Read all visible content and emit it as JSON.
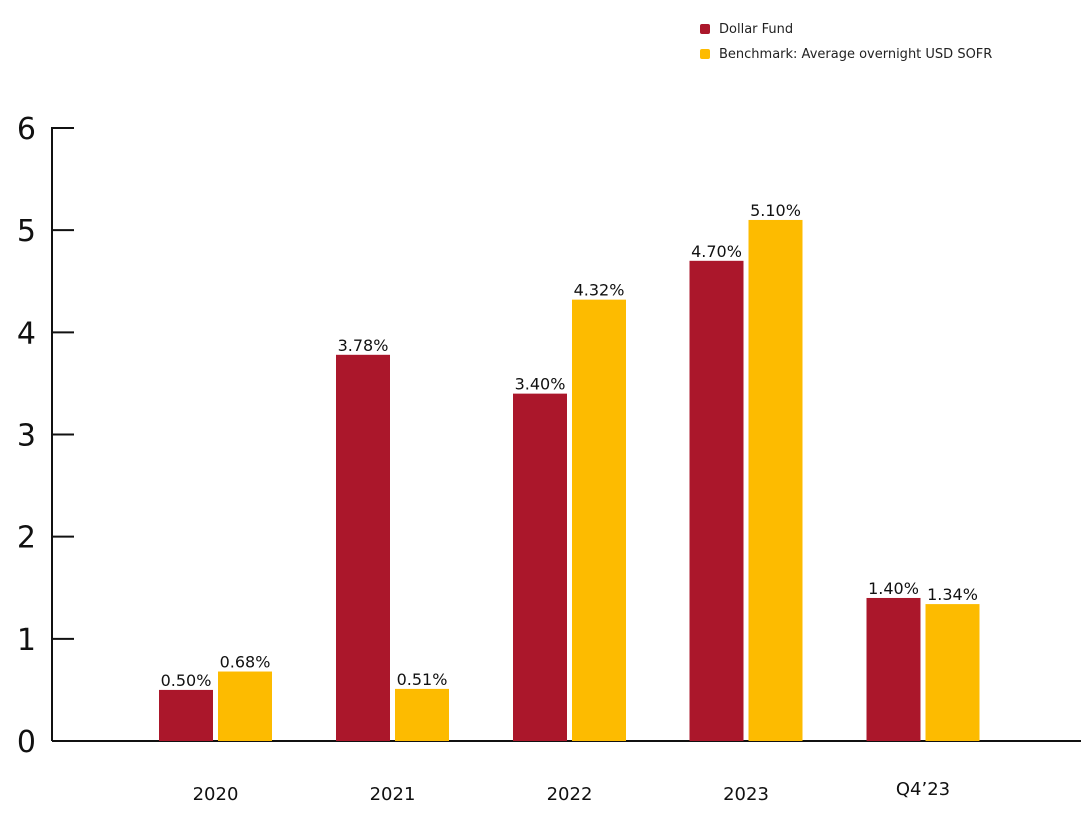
{
  "chart_data": {
    "type": "bar",
    "categories": [
      "2020",
      "2021",
      "2022",
      "2023",
      "Q4’23"
    ],
    "series": [
      {
        "name": "Dollar Fund",
        "color": "#ab172b",
        "values": [
          0.5,
          3.78,
          3.4,
          4.7,
          1.4
        ],
        "labels": [
          "0.50%",
          "3.78%",
          "3.40%",
          "4.70%",
          "1.40%"
        ]
      },
      {
        "name": "Benchmark: Average overnight USD SOFR",
        "color": "#fdbb00",
        "values": [
          0.68,
          0.51,
          4.32,
          5.1,
          1.34
        ],
        "labels": [
          "0.68%",
          "0.51%",
          "4.32%",
          "5.10%",
          "1.34%"
        ]
      }
    ],
    "yticks": [
      "0",
      "1",
      "2",
      "3",
      "4",
      "5",
      "6"
    ],
    "ylim": [
      0,
      6
    ],
    "grid": false,
    "legend_position": "top-right"
  }
}
